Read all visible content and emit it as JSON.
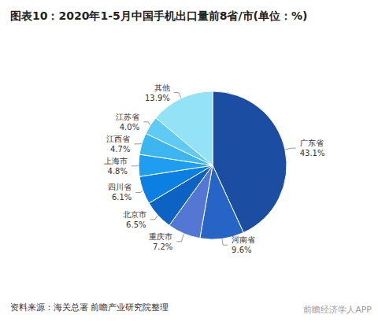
{
  "chart_data": {
    "type": "pie",
    "title": "图表10：2020年1-5月中国手机出口量前8省/市(单位：%)",
    "categories": [
      "广东省",
      "河南省",
      "重庆市",
      "北京市",
      "四川省",
      "上海市",
      "江西省",
      "江苏省",
      "其他"
    ],
    "values": [
      43.1,
      9.6,
      7.2,
      6.5,
      6.1,
      4.8,
      4.7,
      4.0,
      13.9
    ],
    "value_labels": [
      "43.1%",
      "9.6%",
      "7.2%",
      "6.5%",
      "6.1%",
      "4.8%",
      "4.7%",
      "4.0%",
      "13.9%"
    ],
    "colors": [
      "#1b4ea3",
      "#2665c6",
      "#5577d4",
      "#0c63c3",
      "#0b7fe2",
      "#1f9ef0",
      "#3cb6f1",
      "#5fcaf3",
      "#94e2f6"
    ],
    "data_labels": true,
    "source": "资料来源：海关总署 前瞻产业研究院整理",
    "annotations": [
      "前瞻经济学人APP"
    ]
  }
}
